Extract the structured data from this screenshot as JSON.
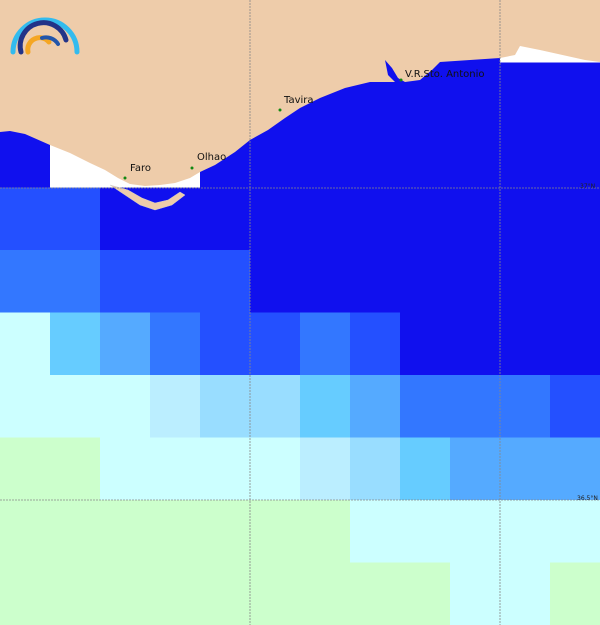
{
  "map": {
    "palette": {
      "D": "#1010EE",
      "B": "#2450FF",
      "M": "#3377FF",
      "S": "#55AAFF",
      "L": "#66CCFF",
      "P": "#99DDFF",
      "Q": "#BBEEFF",
      "C": "#CCFFFF",
      "G": "#CCFFCC",
      "W": "#FFFFFF"
    },
    "land_color": "#EECCAA",
    "grid": [
      "DDDDDDDDDDWW",
      "DDDDDDDDDDDD",
      "DWWWDDDDDDDD",
      "BBDDDDDDDDDD",
      "MMBBBDDDDDDD",
      "CLSMBBMBDDDD",
      "CCCQPPLSMMMB",
      "GGCCCCQPLSSS",
      "GGGGGGGCCCCC",
      "GGGGGGGGGCCG"
    ],
    "cities": [
      {
        "name": "Faro"
      },
      {
        "name": "Olhao"
      },
      {
        "name": "Tavira"
      },
      {
        "name": "V.R.Sto. Antonio"
      }
    ],
    "latitude_labels": [
      "37°N",
      "36.5°N"
    ]
  }
}
